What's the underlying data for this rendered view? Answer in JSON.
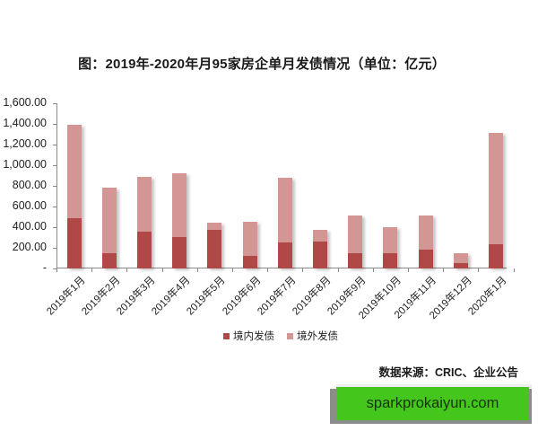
{
  "title": "图：2019年-2020年月95家房企单月发债情况（单位：亿元）",
  "legend": {
    "domestic": "境内发债",
    "overseas": "境外发债"
  },
  "source": "数据来源：CRIC、企业公告",
  "watermark": "sparkprokaiyun.com",
  "colors": {
    "domestic": "#b04848",
    "overseas": "#d49595",
    "watermark_bg": "#45c61c"
  },
  "y_ticks": [
    "1,600.00",
    "1,400.00",
    "1,200.00",
    "1,000.00",
    "800.00",
    "600.00",
    "400.00",
    "200.00",
    "-"
  ],
  "chart_data": {
    "type": "bar",
    "stacked": true,
    "title": "图：2019年-2020年月95家房企单月发债情况（单位：亿元）",
    "xlabel": "",
    "ylabel": "",
    "ylim": [
      0,
      1600
    ],
    "yticks": [
      0,
      200,
      400,
      600,
      800,
      1000,
      1200,
      1400,
      1600
    ],
    "grid": false,
    "legend_position": "bottom",
    "categories": [
      "2019年1月",
      "2019年2月",
      "2019年3月",
      "2019年4月",
      "2019年5月",
      "2019年6月",
      "2019年7月",
      "2019年8月",
      "2019年9月",
      "2019年10月",
      "2019年11月",
      "2019年12月",
      "2020年1月"
    ],
    "series": [
      {
        "name": "境内发债",
        "values": [
          490,
          145,
          360,
          300,
          375,
          118,
          255,
          262,
          150,
          150,
          185,
          52,
          232
        ]
      },
      {
        "name": "境外发债",
        "values": [
          900,
          640,
          525,
          622,
          72,
          330,
          625,
          115,
          362,
          250,
          328,
          93,
          1078
        ]
      }
    ],
    "totals": [
      1390,
      785,
      885,
      922,
      447,
      448,
      880,
      377,
      512,
      400,
      513,
      145,
      1310
    ]
  }
}
